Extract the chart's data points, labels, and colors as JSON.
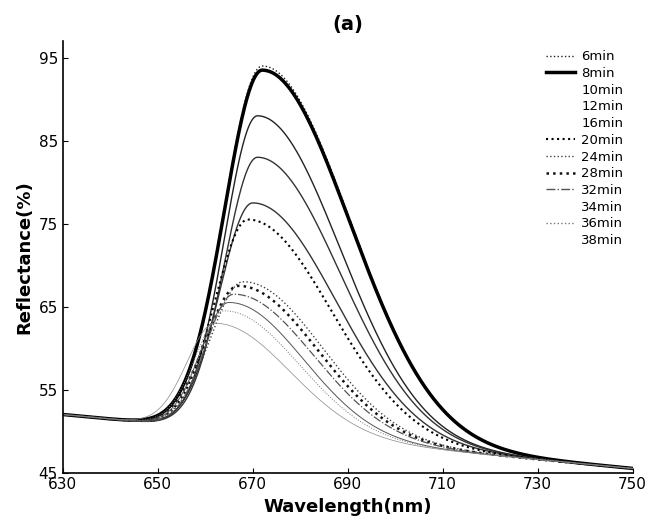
{
  "title": "(a)",
  "xlabel": "Wavelength(nm)",
  "ylabel": "Reflectance(%)",
  "xlim": [
    630,
    750
  ],
  "ylim": [
    45,
    97
  ],
  "xticks": [
    630,
    650,
    670,
    690,
    710,
    730,
    750
  ],
  "yticks": [
    45,
    55,
    65,
    75,
    85,
    95
  ],
  "series": [
    {
      "label": "6min",
      "peak_x": 672,
      "peak_y": 94.0,
      "sigma_l": 8,
      "sigma_r": 18,
      "base_l": 52.0,
      "base_r": 45.5,
      "linestyle": "dotted",
      "linewidth": 1.0,
      "color": "#222222",
      "legend_line": true
    },
    {
      "label": "8min",
      "peak_x": 672,
      "peak_y": 93.5,
      "sigma_l": 8,
      "sigma_r": 18,
      "base_l": 52.0,
      "base_r": 45.5,
      "linestyle": "solid",
      "linewidth": 2.5,
      "color": "#000000",
      "legend_line": true
    },
    {
      "label": "10min",
      "peak_x": 671,
      "peak_y": 88.0,
      "sigma_l": 7,
      "sigma_r": 17,
      "base_l": 52.0,
      "base_r": 45.5,
      "linestyle": "solid",
      "linewidth": 1.0,
      "color": "#222222",
      "legend_line": false
    },
    {
      "label": "12min",
      "peak_x": 671,
      "peak_y": 83.0,
      "sigma_l": 7,
      "sigma_r": 17,
      "base_l": 52.0,
      "base_r": 45.5,
      "linestyle": "solid",
      "linewidth": 1.0,
      "color": "#333333",
      "legend_line": false
    },
    {
      "label": "16min",
      "peak_x": 670,
      "peak_y": 77.5,
      "sigma_l": 7,
      "sigma_r": 17,
      "base_l": 52.0,
      "base_r": 45.5,
      "linestyle": "solid",
      "linewidth": 1.0,
      "color": "#333333",
      "legend_line": false
    },
    {
      "label": "20min",
      "peak_x": 669,
      "peak_y": 75.5,
      "sigma_l": 7,
      "sigma_r": 17,
      "base_l": 52.0,
      "base_r": 45.5,
      "linestyle": "dotted",
      "linewidth": 1.5,
      "color": "#000000",
      "legend_line": true
    },
    {
      "label": "24min",
      "peak_x": 668,
      "peak_y": 68.0,
      "sigma_l": 7,
      "sigma_r": 16,
      "base_l": 52.0,
      "base_r": 45.5,
      "linestyle": "dotted",
      "linewidth": 1.0,
      "color": "#444444",
      "legend_line": true
    },
    {
      "label": "28min",
      "peak_x": 667,
      "peak_y": 67.5,
      "sigma_l": 7,
      "sigma_r": 16,
      "base_l": 52.0,
      "base_r": 45.5,
      "linestyle": "dotted",
      "linewidth": 1.8,
      "color": "#111111",
      "legend_line": true
    },
    {
      "label": "32min",
      "peak_x": 666,
      "peak_y": 66.5,
      "sigma_l": 6,
      "sigma_r": 16,
      "base_l": 52.0,
      "base_r": 45.5,
      "linestyle": "dashdot",
      "linewidth": 0.9,
      "color": "#555555",
      "legend_line": true
    },
    {
      "label": "34min",
      "peak_x": 665,
      "peak_y": 65.5,
      "sigma_l": 6,
      "sigma_r": 15,
      "base_l": 52.0,
      "base_r": 45.5,
      "linestyle": "solid",
      "linewidth": 0.7,
      "color": "#555555",
      "legend_line": false
    },
    {
      "label": "36min",
      "peak_x": 664,
      "peak_y": 64.5,
      "sigma_l": 6,
      "sigma_r": 15,
      "base_l": 52.0,
      "base_r": 45.5,
      "linestyle": "dotted",
      "linewidth": 0.7,
      "color": "#777777",
      "legend_line": true
    },
    {
      "label": "38min",
      "peak_x": 662,
      "peak_y": 63.0,
      "sigma_l": 6,
      "sigma_r": 15,
      "base_l": 52.0,
      "base_r": 45.5,
      "linestyle": "solid",
      "linewidth": 0.5,
      "color": "#888888",
      "legend_line": false
    }
  ]
}
